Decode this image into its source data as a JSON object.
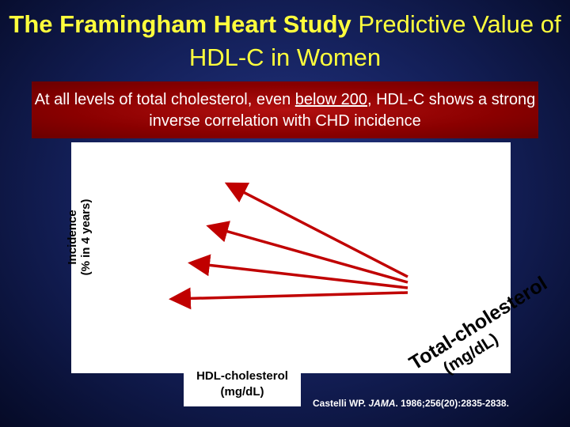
{
  "title": {
    "bold": "The Framingham Heart Study",
    "rest": "Predictive Value of HDL-C in Women"
  },
  "banner": {
    "before": "At all levels of total cholesterol, even",
    "underlined": "below 200",
    "after": ", HDL-C shows a strong inverse correlation with CHD incidence"
  },
  "chart": {
    "y_label": [
      "Incidence",
      "(% in 4 years)"
    ],
    "x_label": [
      "HDL-cholesterol",
      "(mg/dL)"
    ],
    "z_label": [
      "Total-cholesterol",
      "(mg/dL)"
    ]
  },
  "citation": {
    "before": "Castelli WP.",
    "journal": "JAMA",
    "after": ". 1986;256(20):2835-2838."
  }
}
